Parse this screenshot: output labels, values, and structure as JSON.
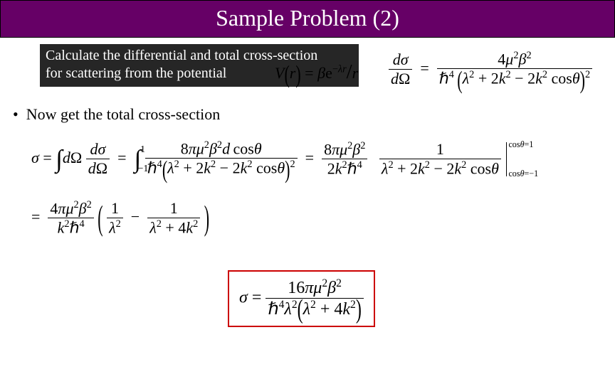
{
  "header": {
    "title": "Sample Problem (2)"
  },
  "problem": {
    "line1": "Calculate the differential and total cross-section",
    "line2": "for scattering from the potential"
  },
  "potential_tex": "V(r) = βe^{−λr}/r",
  "bullet": "Now get the total cross-section",
  "symbols": {
    "sigma": "σ",
    "dsigma": "dσ",
    "dOmega": "dΩ",
    "mu": "μ",
    "beta": "β",
    "pi": "π",
    "lambda": "λ",
    "theta": "θ",
    "hbar": "ℏ",
    "integral": "∫",
    "minus": "−",
    "eq": "="
  },
  "colors": {
    "header_bg": "#660066",
    "box_bg": "#262626",
    "highlight_border": "#cc0000"
  }
}
